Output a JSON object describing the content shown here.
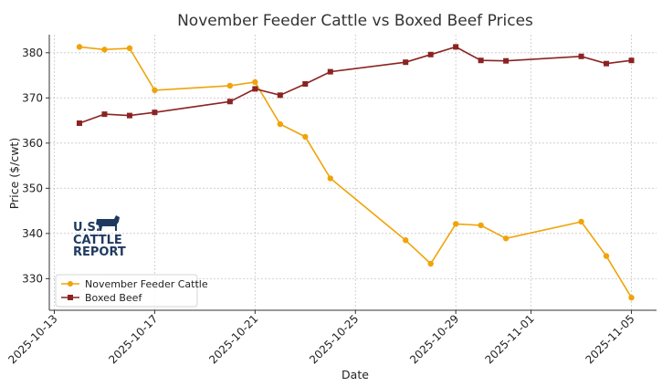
{
  "chart_data": {
    "type": "line",
    "title": "November Feeder Cattle vs Boxed Beef Prices",
    "xlabel": "Date",
    "ylabel": "Price ($/cwt)",
    "xlim": [
      "2025-10-13",
      "2025-11-05"
    ],
    "ylim": [
      323,
      384
    ],
    "grid": true,
    "legend_position": "lower-left",
    "x_ticks": [
      "2025-10-13",
      "2025-10-17",
      "2025-10-21",
      "2025-10-25",
      "2025-10-29",
      "2025-11-01",
      "2025-11-05"
    ],
    "y_ticks": [
      330,
      340,
      350,
      360,
      370,
      380
    ],
    "series": [
      {
        "name": "November Feeder Cattle",
        "color": "#f0a30a",
        "marker": "circle",
        "x": [
          "2025-10-14",
          "2025-10-15",
          "2025-10-16",
          "2025-10-17",
          "2025-10-20",
          "2025-10-21",
          "2025-10-22",
          "2025-10-23",
          "2025-10-24",
          "2025-10-27",
          "2025-10-28",
          "2025-10-29",
          "2025-10-30",
          "2025-10-31",
          "2025-11-03",
          "2025-11-04",
          "2025-11-05"
        ],
        "values": [
          381.3,
          380.7,
          381.0,
          371.7,
          372.7,
          373.5,
          364.2,
          361.4,
          352.2,
          338.5,
          333.3,
          342.1,
          341.8,
          338.9,
          342.6,
          335.0,
          325.8
        ]
      },
      {
        "name": "Boxed Beef",
        "color": "#8b2323",
        "marker": "square",
        "x": [
          "2025-10-14",
          "2025-10-15",
          "2025-10-16",
          "2025-10-17",
          "2025-10-20",
          "2025-10-21",
          "2025-10-22",
          "2025-10-23",
          "2025-10-24",
          "2025-10-27",
          "2025-10-28",
          "2025-10-29",
          "2025-10-30",
          "2025-10-31",
          "2025-11-03",
          "2025-11-04",
          "2025-11-05"
        ],
        "values": [
          364.4,
          366.4,
          366.1,
          366.8,
          369.2,
          372.0,
          370.6,
          373.1,
          375.8,
          377.9,
          379.6,
          381.3,
          378.3,
          378.2,
          379.2,
          377.6,
          378.3
        ]
      }
    ]
  },
  "logo": {
    "line1": "U.S.",
    "line2": "CATTLE",
    "line3": "REPORT",
    "icon": "cow-icon",
    "color": "#1f3a5f"
  }
}
